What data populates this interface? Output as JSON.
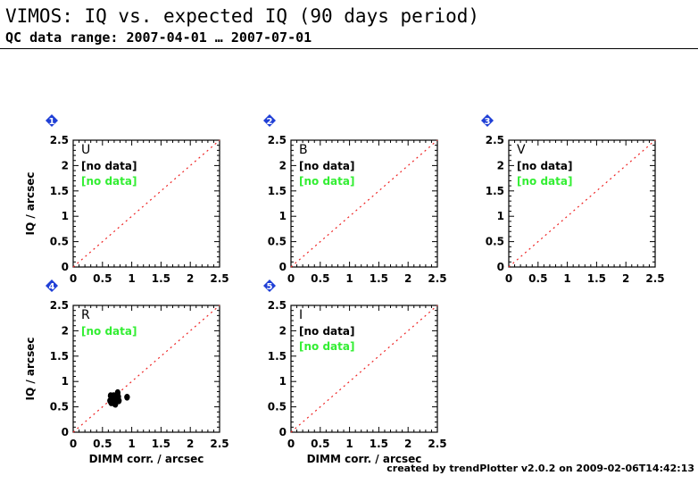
{
  "header": {
    "title": "VIMOS: IQ vs. expected IQ (90 days period)",
    "subtitle": "QC data range: 2007-04-01 … 2007-07-01"
  },
  "footer": {
    "credit": "created by trendPlotter v2.0.2 on 2009-02-06T14:42:13"
  },
  "colors": {
    "no_data_green": "#33ee33",
    "diagonal": "#ee2222",
    "badge": "#1f3fd6",
    "axis": "#000000"
  },
  "chart_data": [
    {
      "type": "scatter",
      "badge": "1",
      "panel_label": "U",
      "status_lines": [
        {
          "text": "[no data]",
          "color": "black"
        },
        {
          "text": "[no data]",
          "color": "green"
        }
      ],
      "xlabel": "",
      "ylabel": "IQ / arcsec",
      "xlim": [
        0,
        2.5
      ],
      "ylim": [
        0,
        2.5
      ],
      "xticks": [
        "0",
        "0.5",
        "1",
        "1.5",
        "2",
        "2.5"
      ],
      "yticks": [
        "0",
        "0.5",
        "1",
        "1.5",
        "2",
        "2.5"
      ],
      "reference_line": "x = y",
      "points": []
    },
    {
      "type": "scatter",
      "badge": "2",
      "panel_label": "B",
      "status_lines": [
        {
          "text": "[no data]",
          "color": "black"
        },
        {
          "text": "[no data]",
          "color": "green"
        }
      ],
      "xlabel": "",
      "ylabel": "",
      "xlim": [
        0,
        2.5
      ],
      "ylim": [
        0,
        2.5
      ],
      "xticks": [
        "0",
        "0.5",
        "1",
        "1.5",
        "2",
        "2.5"
      ],
      "yticks": [
        "0",
        "0.5",
        "1",
        "1.5",
        "2",
        "2.5"
      ],
      "reference_line": "x = y",
      "points": []
    },
    {
      "type": "scatter",
      "badge": "3",
      "panel_label": "V",
      "status_lines": [
        {
          "text": "[no data]",
          "color": "black"
        },
        {
          "text": "[no data]",
          "color": "green"
        }
      ],
      "xlabel": "",
      "ylabel": "",
      "xlim": [
        0,
        2.5
      ],
      "ylim": [
        0,
        2.5
      ],
      "xticks": [
        "0",
        "0.5",
        "1",
        "1.5",
        "2",
        "2.5"
      ],
      "yticks": [
        "0",
        "0.5",
        "1",
        "1.5",
        "2",
        "2.5"
      ],
      "reference_line": "x = y",
      "points": []
    },
    {
      "type": "scatter",
      "badge": "4",
      "panel_label": "R",
      "status_lines": [
        {
          "text": "[no data]",
          "color": "green"
        }
      ],
      "xlabel": "DIMM corr. / arcsec",
      "ylabel": "IQ / arcsec",
      "xlim": [
        0,
        2.5
      ],
      "ylim": [
        0,
        2.5
      ],
      "xticks": [
        "0",
        "0.5",
        "1",
        "1.5",
        "2",
        "2.5"
      ],
      "yticks": [
        "0",
        "0.5",
        "1",
        "1.5",
        "2",
        "2.5"
      ],
      "reference_line": "x = y",
      "points": [
        [
          0.64,
          0.72
        ],
        [
          0.66,
          0.65
        ],
        [
          0.68,
          0.6
        ],
        [
          0.7,
          0.68
        ],
        [
          0.72,
          0.55
        ],
        [
          0.65,
          0.58
        ],
        [
          0.74,
          0.63
        ],
        [
          0.69,
          0.72
        ],
        [
          0.76,
          0.78
        ],
        [
          0.73,
          0.7
        ],
        [
          0.67,
          0.67
        ],
        [
          0.71,
          0.62
        ],
        [
          0.63,
          0.62
        ],
        [
          0.75,
          0.66
        ],
        [
          0.78,
          0.62
        ],
        [
          0.7,
          0.57
        ],
        [
          0.92,
          0.69
        ],
        [
          0.77,
          0.7
        ]
      ]
    },
    {
      "type": "scatter",
      "badge": "5",
      "panel_label": "I",
      "status_lines": [
        {
          "text": "[no data]",
          "color": "black"
        },
        {
          "text": "[no data]",
          "color": "green"
        }
      ],
      "xlabel": "DIMM corr. / arcsec",
      "ylabel": "",
      "xlim": [
        0,
        2.5
      ],
      "ylim": [
        0,
        2.5
      ],
      "xticks": [
        "0",
        "0.5",
        "1",
        "1.5",
        "2",
        "2.5"
      ],
      "yticks": [
        "0",
        "0.5",
        "1",
        "1.5",
        "2",
        "2.5"
      ],
      "reference_line": "x = y",
      "points": []
    }
  ]
}
